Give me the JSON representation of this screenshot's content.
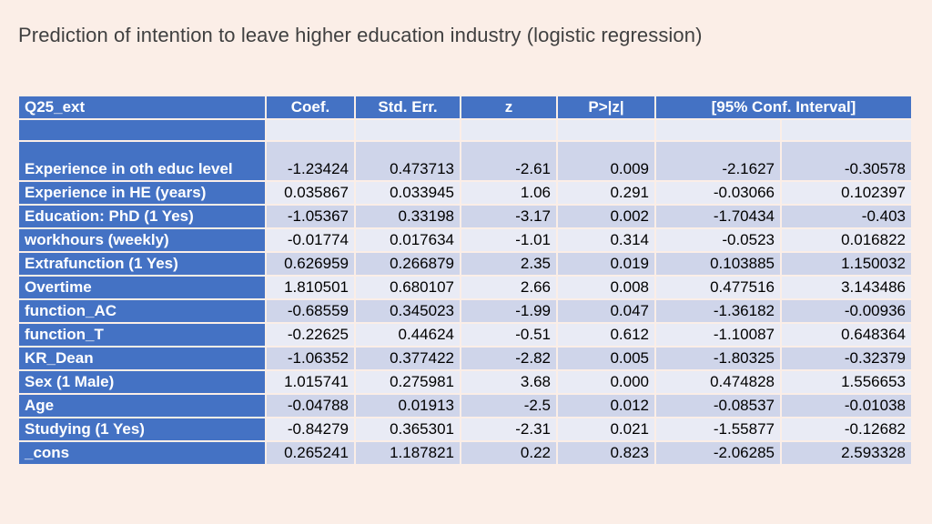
{
  "title": "Prediction of intention to leave higher education industry (logistic regression)",
  "table": {
    "headers": [
      "Q25_ext",
      "Coef.",
      "Std. Err.",
      "z",
      "P>|z|",
      "[95% Conf. Interval]"
    ],
    "rows": [
      {
        "label": "Experience in oth educ level",
        "coef": "-1.23424",
        "se": "0.473713",
        "z": "-2.61",
        "p": "0.009",
        "ci_low": "-2.1627",
        "ci_high": "-0.30578"
      },
      {
        "label": "Experience in HE (years)",
        "coef": "0.035867",
        "se": "0.033945",
        "z": "1.06",
        "p": "0.291",
        "ci_low": "-0.03066",
        "ci_high": "0.102397"
      },
      {
        "label": "Education: PhD (1 Yes)",
        "coef": "-1.05367",
        "se": "0.33198",
        "z": "-3.17",
        "p": "0.002",
        "ci_low": "-1.70434",
        "ci_high": "-0.403"
      },
      {
        "label": "workhours (weekly)",
        "coef": "-0.01774",
        "se": "0.017634",
        "z": "-1.01",
        "p": "0.314",
        "ci_low": "-0.0523",
        "ci_high": "0.016822"
      },
      {
        "label": "Extrafunction (1 Yes)",
        "coef": "0.626959",
        "se": "0.266879",
        "z": "2.35",
        "p": "0.019",
        "ci_low": "0.103885",
        "ci_high": "1.150032"
      },
      {
        "label": "Overtime",
        "coef": "1.810501",
        "se": "0.680107",
        "z": "2.66",
        "p": "0.008",
        "ci_low": "0.477516",
        "ci_high": "3.143486"
      },
      {
        "label": "function_AC",
        "coef": "-0.68559",
        "se": "0.345023",
        "z": "-1.99",
        "p": "0.047",
        "ci_low": "-1.36182",
        "ci_high": "-0.00936"
      },
      {
        "label": "function_T",
        "coef": "-0.22625",
        "se": "0.44624",
        "z": "-0.51",
        "p": "0.612",
        "ci_low": "-1.10087",
        "ci_high": "0.648364"
      },
      {
        "label": "KR_Dean",
        "coef": "-1.06352",
        "se": "0.377422",
        "z": "-2.82",
        "p": "0.005",
        "ci_low": "-1.80325",
        "ci_high": "-0.32379"
      },
      {
        "label": "Sex (1 Male)",
        "coef": "1.015741",
        "se": "0.275981",
        "z": "3.68",
        "p": "0.000",
        "ci_low": "0.474828",
        "ci_high": "1.556653"
      },
      {
        "label": "Age",
        "coef": "-0.04788",
        "se": "0.01913",
        "z": "-2.5",
        "p": "0.012",
        "ci_low": "-0.08537",
        "ci_high": "-0.01038"
      },
      {
        "label": "Studying (1 Yes)",
        "coef": "-0.84279",
        "se": "0.365301",
        "z": "-2.31",
        "p": "0.021",
        "ci_low": "-1.55877",
        "ci_high": "-0.12682"
      },
      {
        "label": "_cons",
        "coef": "0.265241",
        "se": "1.187821",
        "z": "0.22",
        "p": "0.823",
        "ci_low": "-2.06285",
        "ci_high": "2.593328"
      }
    ]
  },
  "colors": {
    "header_bg": "#4472c4",
    "row_light": "#e9ebf5",
    "row_dark": "#cfd5ea",
    "background": "#fbeee7"
  }
}
